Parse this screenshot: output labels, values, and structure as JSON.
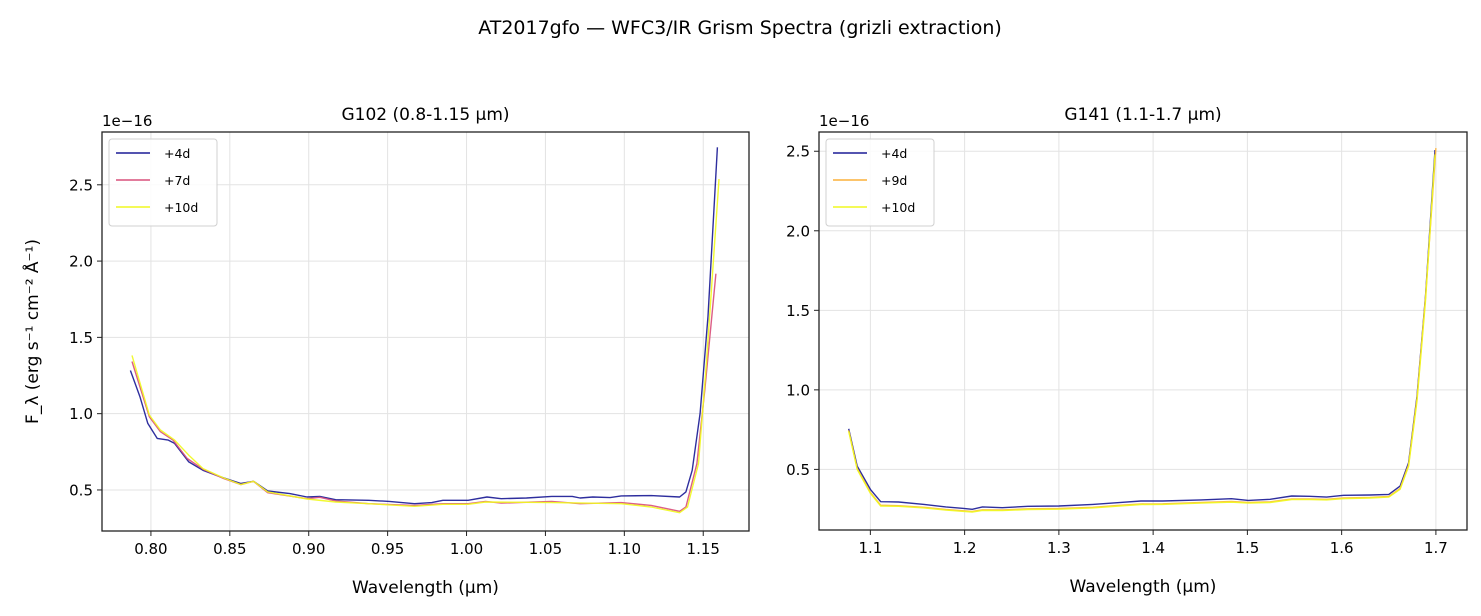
{
  "figure_title": "AT2017gfo — WFC3/IR Grism Spectra (grizli extraction)",
  "chart_data": [
    {
      "type": "line",
      "title": "G102 (0.8-1.15 μm)",
      "xlabel": "Wavelength (μm)",
      "ylabel": "F_λ (erg s⁻¹ cm⁻² Å⁻¹)",
      "y_offset_label": "1e−16",
      "xlim": [
        0.769,
        1.179
      ],
      "ylim": [
        0.231,
        2.846
      ],
      "xticks": [
        0.8,
        0.85,
        0.9,
        0.95,
        1.0,
        1.05,
        1.1,
        1.15
      ],
      "xtick_labels": [
        "0.80",
        "0.85",
        "0.90",
        "0.95",
        "1.00",
        "1.05",
        "1.10",
        "1.15"
      ],
      "yticks": [
        0.5,
        1.0,
        1.5,
        2.0,
        2.5
      ],
      "ytick_labels": [
        "0.5",
        "1.0",
        "1.5",
        "2.0",
        "2.5"
      ],
      "grid": true,
      "legend_position": "top-left",
      "series": [
        {
          "name": "+4d",
          "color": "#1c1c96",
          "x": [
            0.787,
            0.793,
            0.798,
            0.804,
            0.811,
            0.815,
            0.824,
            0.833,
            0.844,
            0.857,
            0.865,
            0.874,
            0.888,
            0.899,
            0.907,
            0.917,
            0.938,
            0.951,
            0.967,
            0.978,
            0.985,
            1.001,
            1.013,
            1.022,
            1.038,
            1.054,
            1.067,
            1.072,
            1.08,
            1.091,
            1.098,
            1.117,
            1.135,
            1.139,
            1.143,
            1.148,
            1.153,
            1.159
          ],
          "y": [
            1.283,
            1.112,
            0.936,
            0.838,
            0.827,
            0.805,
            0.684,
            0.629,
            0.586,
            0.542,
            0.557,
            0.493,
            0.476,
            0.454,
            0.458,
            0.436,
            0.432,
            0.425,
            0.41,
            0.417,
            0.432,
            0.432,
            0.454,
            0.443,
            0.447,
            0.458,
            0.458,
            0.447,
            0.454,
            0.45,
            0.461,
            0.463,
            0.454,
            0.487,
            0.629,
            1.002,
            1.638,
            2.746
          ]
        },
        {
          "name": "+7d",
          "color": "#d9507c",
          "x": [
            0.788,
            0.799,
            0.806,
            0.814,
            0.823,
            0.833,
            0.846,
            0.857,
            0.865,
            0.874,
            0.899,
            0.907,
            0.917,
            0.938,
            0.967,
            0.985,
            1.001,
            1.012,
            1.022,
            1.054,
            1.072,
            1.098,
            1.117,
            1.135,
            1.139,
            1.146,
            1.151,
            1.158
          ],
          "y": [
            1.342,
            0.98,
            0.882,
            0.827,
            0.706,
            0.636,
            0.575,
            0.535,
            0.557,
            0.482,
            0.443,
            0.452,
            0.428,
            0.41,
            0.399,
            0.41,
            0.41,
            0.425,
            0.414,
            0.425,
            0.41,
            0.417,
            0.399,
            0.36,
            0.388,
            0.673,
            1.156,
            1.917
          ]
        },
        {
          "name": "+10d",
          "color": "#f0f921",
          "x": [
            0.788,
            0.799,
            0.806,
            0.815,
            0.824,
            0.833,
            0.846,
            0.857,
            0.865,
            0.874,
            0.899,
            0.917,
            0.938,
            0.967,
            0.985,
            1.001,
            1.012,
            1.054,
            1.098,
            1.117,
            1.135,
            1.14,
            1.147,
            1.152,
            1.16
          ],
          "y": [
            1.382,
            0.991,
            0.893,
            0.827,
            0.728,
            0.64,
            0.579,
            0.535,
            0.557,
            0.487,
            0.441,
            0.421,
            0.41,
            0.393,
            0.406,
            0.406,
            0.421,
            0.417,
            0.41,
            0.388,
            0.351,
            0.388,
            0.673,
            1.331,
            2.537
          ]
        }
      ]
    },
    {
      "type": "line",
      "title": "G141 (1.1-1.7 μm)",
      "xlabel": "Wavelength (μm)",
      "ylabel": "",
      "y_offset_label": "1e−16",
      "xlim": [
        1.0455,
        1.733
      ],
      "ylim": [
        0.119,
        2.621
      ],
      "xticks": [
        1.1,
        1.2,
        1.3,
        1.4,
        1.5,
        1.6,
        1.7
      ],
      "xtick_labels": [
        "1.1",
        "1.2",
        "1.3",
        "1.4",
        "1.5",
        "1.6",
        "1.7"
      ],
      "yticks": [
        0.5,
        1.0,
        1.5,
        2.0,
        2.5
      ],
      "ytick_labels": [
        "0.5",
        "1.0",
        "1.5",
        "2.0",
        "2.5"
      ],
      "grid": true,
      "legend_position": "top-left",
      "series": [
        {
          "name": "+4d",
          "color": "#1c1c96",
          "x": [
            1.077,
            1.086,
            1.1,
            1.111,
            1.13,
            1.157,
            1.18,
            1.199,
            1.208,
            1.219,
            1.24,
            1.267,
            1.3,
            1.336,
            1.364,
            1.387,
            1.41,
            1.451,
            1.483,
            1.501,
            1.524,
            1.547,
            1.566,
            1.584,
            1.602,
            1.63,
            1.65,
            1.662,
            1.671,
            1.68,
            1.689,
            1.699
          ],
          "y": [
            0.755,
            0.521,
            0.374,
            0.297,
            0.295,
            0.28,
            0.264,
            0.255,
            0.249,
            0.264,
            0.259,
            0.268,
            0.27,
            0.28,
            0.291,
            0.301,
            0.301,
            0.308,
            0.316,
            0.305,
            0.312,
            0.333,
            0.331,
            0.326,
            0.337,
            0.339,
            0.343,
            0.395,
            0.542,
            0.96,
            1.588,
            2.508
          ]
        },
        {
          "name": "+9d",
          "color": "#fbb13a",
          "x": [
            1.077,
            1.086,
            1.1,
            1.111,
            1.13,
            1.157,
            1.18,
            1.199,
            1.208,
            1.219,
            1.24,
            1.267,
            1.3,
            1.336,
            1.364,
            1.387,
            1.41,
            1.451,
            1.483,
            1.501,
            1.524,
            1.547,
            1.566,
            1.584,
            1.602,
            1.63,
            1.65,
            1.662,
            1.671,
            1.68,
            1.689,
            1.7
          ],
          "y": [
            0.745,
            0.505,
            0.355,
            0.275,
            0.272,
            0.262,
            0.248,
            0.24,
            0.236,
            0.246,
            0.245,
            0.252,
            0.254,
            0.262,
            0.274,
            0.283,
            0.284,
            0.292,
            0.298,
            0.292,
            0.296,
            0.314,
            0.314,
            0.312,
            0.32,
            0.324,
            0.33,
            0.38,
            0.53,
            0.945,
            1.58,
            2.52
          ]
        },
        {
          "name": "+10d",
          "color": "#f0f921",
          "x": [
            1.077,
            1.086,
            1.1,
            1.111,
            1.13,
            1.157,
            1.18,
            1.199,
            1.208,
            1.219,
            1.24,
            1.267,
            1.3,
            1.336,
            1.364,
            1.387,
            1.41,
            1.451,
            1.483,
            1.501,
            1.524,
            1.547,
            1.566,
            1.584,
            1.602,
            1.63,
            1.65,
            1.662,
            1.671,
            1.68,
            1.689,
            1.699
          ],
          "y": [
            0.74,
            0.5,
            0.35,
            0.27,
            0.268,
            0.258,
            0.244,
            0.236,
            0.232,
            0.242,
            0.241,
            0.248,
            0.25,
            0.258,
            0.27,
            0.279,
            0.28,
            0.288,
            0.294,
            0.288,
            0.292,
            0.31,
            0.31,
            0.308,
            0.316,
            0.32,
            0.326,
            0.375,
            0.52,
            0.93,
            1.56,
            2.48
          ]
        }
      ]
    }
  ]
}
